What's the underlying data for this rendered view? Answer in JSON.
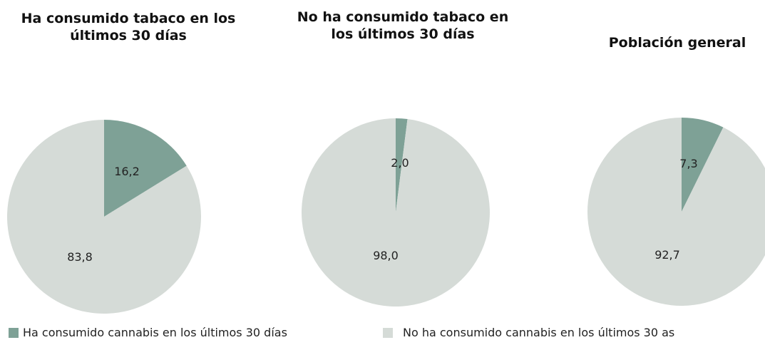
{
  "colors": {
    "cannabis_yes": "#7ea196",
    "cannabis_no": "#d5dbd7"
  },
  "chart_data": [
    {
      "type": "pie",
      "title": "Ha consumido tabaco en los últimos 30 días",
      "slices": [
        {
          "label": "16,2",
          "value": 16.2,
          "series": "Ha consumido cannabis en los últimos 30 días"
        },
        {
          "label": "83,8",
          "value": 83.8,
          "series": "No ha consumido cannabis en los últimos 30 as"
        }
      ]
    },
    {
      "type": "pie",
      "title": "No ha consumido tabaco en los últimos 30 días",
      "slices": [
        {
          "label": "2,0",
          "value": 2.0,
          "series": "Ha consumido cannabis en los últimos 30 días"
        },
        {
          "label": "98,0",
          "value": 98.0,
          "series": "No ha consumido cannabis en los últimos 30 as"
        }
      ]
    },
    {
      "type": "pie",
      "title": "Población general",
      "slices": [
        {
          "label": "7,3",
          "value": 7.3,
          "series": "Ha consumido cannabis en los últimos 30 días"
        },
        {
          "label": "92,7",
          "value": 92.7,
          "series": "No ha consumido cannabis en los últimos 30 as"
        }
      ]
    }
  ],
  "legend": [
    {
      "label": "Ha consumido cannabis en los últimos 30 días",
      "color_key": "cannabis_yes"
    },
    {
      "label": "No ha consumido cannabis en los últimos 30 as",
      "color_key": "cannabis_no"
    }
  ]
}
